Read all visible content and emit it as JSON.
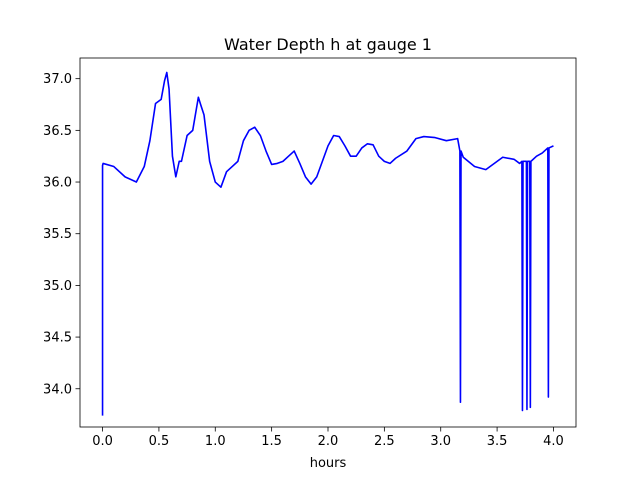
{
  "chart_data": {
    "type": "line",
    "title": "Water Depth h at gauge 1",
    "xlabel": "hours",
    "ylabel": "",
    "xlim": [
      -0.2,
      4.2
    ],
    "ylim": [
      33.63,
      37.2
    ],
    "xticks": [
      0.0,
      0.5,
      1.0,
      1.5,
      2.0,
      2.5,
      3.0,
      3.5,
      4.0
    ],
    "xtick_labels": [
      "0.0",
      "0.5",
      "1.0",
      "1.5",
      "2.0",
      "2.5",
      "3.0",
      "3.5",
      "4.0"
    ],
    "yticks": [
      34.0,
      34.5,
      35.0,
      35.5,
      36.0,
      36.5,
      37.0
    ],
    "ytick_labels": [
      "34.0",
      "34.5",
      "35.0",
      "35.5",
      "36.0",
      "36.5",
      "37.0"
    ],
    "grid": false,
    "line_color": "#0000ff",
    "series": [
      {
        "x": [
          0.0,
          0.0,
          0.005,
          0.1,
          0.2,
          0.3,
          0.37,
          0.42,
          0.47,
          0.52,
          0.55,
          0.57,
          0.59,
          0.62,
          0.65,
          0.68,
          0.7,
          0.75,
          0.8,
          0.85,
          0.87,
          0.9,
          0.95,
          1.0,
          1.05,
          1.1,
          1.15,
          1.2,
          1.25,
          1.3,
          1.35,
          1.4,
          1.45,
          1.5,
          1.55,
          1.6,
          1.65,
          1.7,
          1.75,
          1.8,
          1.85,
          1.9,
          1.95,
          2.0,
          2.05,
          2.1,
          2.15,
          2.2,
          2.25,
          2.3,
          2.35,
          2.4,
          2.45,
          2.5,
          2.55,
          2.6,
          2.7,
          2.78,
          2.85,
          2.95,
          3.05,
          3.15,
          3.17,
          3.175,
          3.18,
          3.2,
          3.3,
          3.4,
          3.5,
          3.55,
          3.65,
          3.7,
          3.72,
          3.725,
          3.73,
          3.76,
          3.765,
          3.77,
          3.79,
          3.795,
          3.8,
          3.85,
          3.9,
          3.95,
          3.955,
          3.96,
          4.0
        ],
        "y": [
          33.74,
          36.16,
          36.18,
          36.15,
          36.05,
          36.0,
          36.15,
          36.4,
          36.76,
          36.8,
          36.98,
          37.06,
          36.9,
          36.25,
          36.05,
          36.2,
          36.2,
          36.45,
          36.5,
          36.82,
          36.75,
          36.65,
          36.2,
          36.0,
          35.95,
          36.1,
          36.15,
          36.2,
          36.4,
          36.5,
          36.53,
          36.45,
          36.3,
          36.17,
          36.18,
          36.2,
          36.25,
          36.3,
          36.18,
          36.05,
          35.98,
          36.05,
          36.2,
          36.35,
          36.45,
          36.44,
          36.35,
          36.25,
          36.25,
          36.33,
          36.37,
          36.36,
          36.25,
          36.2,
          36.18,
          36.23,
          36.3,
          36.42,
          36.44,
          36.43,
          36.4,
          36.42,
          36.3,
          33.87,
          36.3,
          36.24,
          36.15,
          36.12,
          36.2,
          36.24,
          36.22,
          36.18,
          36.2,
          33.79,
          36.2,
          36.2,
          33.8,
          36.2,
          36.2,
          33.82,
          36.2,
          36.25,
          36.28,
          36.33,
          33.92,
          36.33,
          36.35
        ]
      }
    ]
  }
}
